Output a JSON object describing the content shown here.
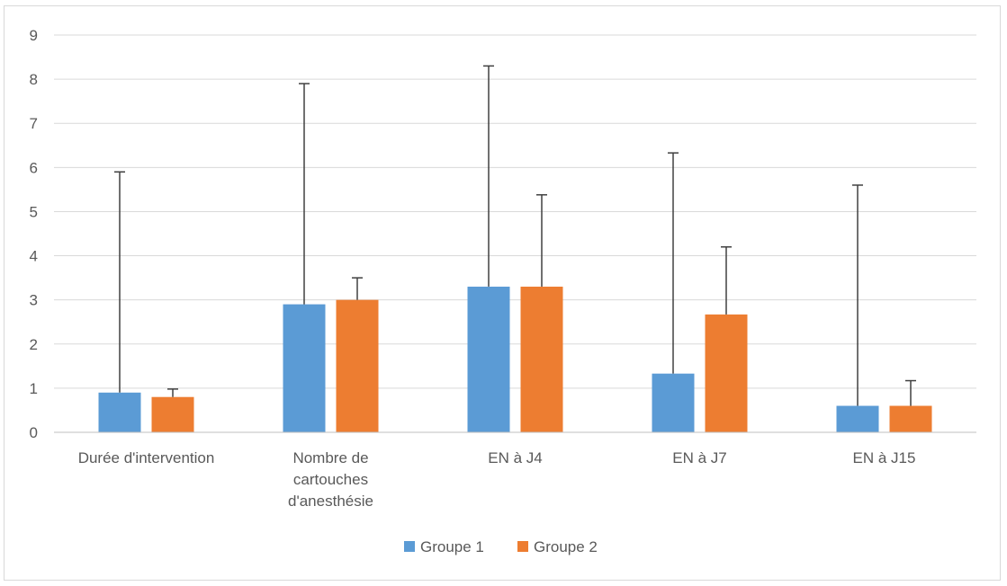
{
  "chart_data": {
    "type": "bar",
    "title": "",
    "xlabel": "",
    "ylabel": "",
    "ylim": [
      0,
      9
    ],
    "yticks": [
      0,
      1,
      2,
      3,
      4,
      5,
      6,
      7,
      8,
      9
    ],
    "grid": true,
    "legend_position": "bottom",
    "categories": [
      [
        "Durée d'intervention"
      ],
      [
        "Nombre de",
        "cartouches",
        "d'anesthésie"
      ],
      [
        "EN à J4"
      ],
      [
        "EN à J7"
      ],
      [
        "EN à J15"
      ]
    ],
    "series": [
      {
        "name": "Groupe 1",
        "color": "#5b9bd5",
        "values": [
          0.9,
          2.9,
          3.3,
          1.33,
          0.6
        ],
        "error_upper": [
          5.9,
          7.9,
          8.3,
          6.33,
          5.6
        ]
      },
      {
        "name": "Groupe 2",
        "color": "#ed7d31",
        "values": [
          0.8,
          3.0,
          3.3,
          2.67,
          0.6
        ],
        "error_upper": [
          0.98,
          3.5,
          5.38,
          4.2,
          1.17
        ]
      }
    ]
  }
}
